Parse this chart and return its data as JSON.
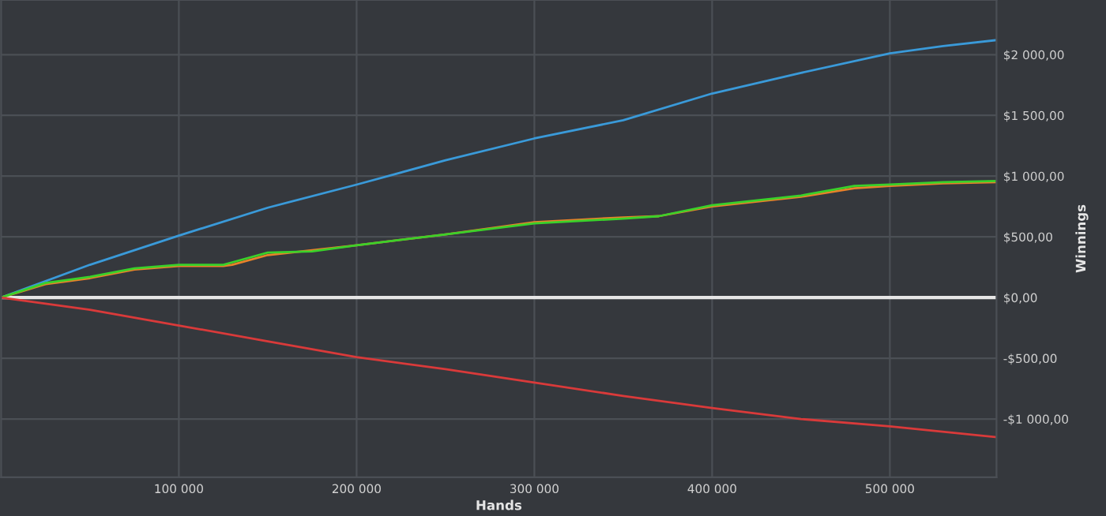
{
  "chart_data": {
    "type": "line",
    "xlabel": "Hands",
    "ylabel": "Winnings",
    "xlim": [
      0,
      560000
    ],
    "ylim": [
      -1480,
      2450
    ],
    "xticks": [
      {
        "value": 100000,
        "label": "100 000"
      },
      {
        "value": 200000,
        "label": "200 000"
      },
      {
        "value": 300000,
        "label": "300 000"
      },
      {
        "value": 400000,
        "label": "400 000"
      },
      {
        "value": 500000,
        "label": "500 000"
      }
    ],
    "yticks": [
      {
        "value": -1000,
        "label": "-$1 000,00"
      },
      {
        "value": -500,
        "label": "-$500,00"
      },
      {
        "value": 0,
        "label": "$0,00"
      },
      {
        "value": 500,
        "label": "$500,00"
      },
      {
        "value": 1000,
        "label": "$1 000,00"
      },
      {
        "value": 1500,
        "label": "$1 500,00"
      },
      {
        "value": 2000,
        "label": "$2 000,00"
      }
    ],
    "grid": true,
    "legend": false,
    "line_style": "solid",
    "marker": "none",
    "ref_lines": [
      {
        "axis": "y",
        "value": 0,
        "label": null,
        "color": "#e6e6e6"
      }
    ],
    "series": [
      {
        "color": "#3a9ad9",
        "x": [
          0,
          50000,
          100000,
          150000,
          200000,
          250000,
          300000,
          350000,
          400000,
          450000,
          500000,
          530000,
          560000
        ],
        "values": [
          0,
          270,
          510,
          740,
          930,
          1130,
          1310,
          1460,
          1680,
          1850,
          2010,
          2070,
          2120
        ]
      },
      {
        "color": "#e8822a",
        "x": [
          0,
          25000,
          50000,
          75000,
          100000,
          125000,
          130000,
          150000,
          175000,
          200000,
          250000,
          300000,
          350000,
          370000,
          400000,
          450000,
          480000,
          500000,
          530000,
          560000
        ],
        "values": [
          0,
          110,
          160,
          230,
          260,
          260,
          270,
          350,
          390,
          430,
          520,
          620,
          660,
          670,
          750,
          830,
          900,
          920,
          940,
          950
        ]
      },
      {
        "color": "#3ad12a",
        "x": [
          0,
          25000,
          50000,
          75000,
          100000,
          125000,
          130000,
          150000,
          175000,
          200000,
          250000,
          300000,
          350000,
          370000,
          400000,
          450000,
          480000,
          500000,
          530000,
          560000
        ],
        "values": [
          0,
          120,
          170,
          240,
          270,
          270,
          290,
          370,
          380,
          430,
          520,
          610,
          650,
          670,
          760,
          840,
          920,
          930,
          950,
          960
        ]
      },
      {
        "color": "#d93a3a",
        "x": [
          0,
          50000,
          100000,
          150000,
          200000,
          250000,
          300000,
          350000,
          400000,
          450000,
          500000,
          560000
        ],
        "values": [
          0,
          -100,
          -230,
          -360,
          -490,
          -590,
          -700,
          -810,
          -910,
          -1000,
          -1060,
          -1150
        ]
      }
    ]
  }
}
